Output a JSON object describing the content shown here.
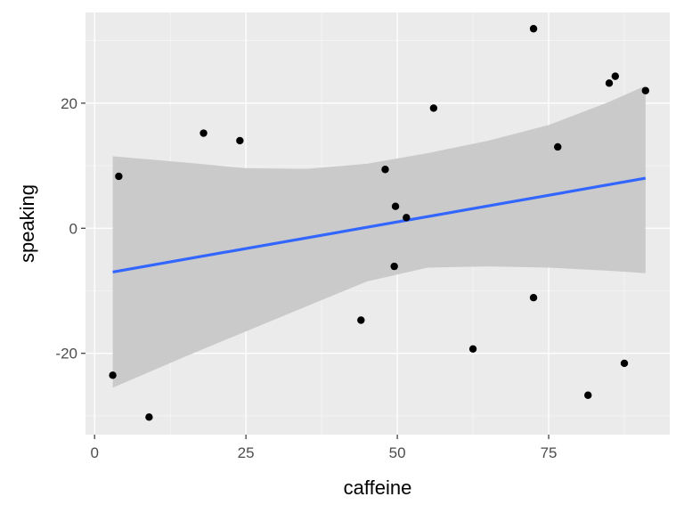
{
  "chart_data": {
    "type": "scatter",
    "title": "",
    "xlabel": "caffeine",
    "ylabel": "speaking",
    "xlim": [
      -1.5,
      95.0
    ],
    "ylim": [
      -33.0,
      34.5
    ],
    "x_ticks": [
      0,
      25,
      50,
      75
    ],
    "x_tick_labels": [
      "0",
      "25",
      "50",
      "75"
    ],
    "y_ticks": [
      -20,
      0,
      20
    ],
    "y_tick_labels": [
      "-20",
      "0",
      "20"
    ],
    "points": [
      {
        "x": 3.0,
        "y": -23.5
      },
      {
        "x": 4.0,
        "y": 8.3
      },
      {
        "x": 9.0,
        "y": -30.2
      },
      {
        "x": 18.0,
        "y": 15.2
      },
      {
        "x": 24.0,
        "y": 14.0
      },
      {
        "x": 44.0,
        "y": -14.7
      },
      {
        "x": 48.0,
        "y": 9.4
      },
      {
        "x": 49.5,
        "y": -6.1
      },
      {
        "x": 49.7,
        "y": 3.5
      },
      {
        "x": 51.5,
        "y": 1.7
      },
      {
        "x": 56.0,
        "y": 19.2
      },
      {
        "x": 62.5,
        "y": -19.3
      },
      {
        "x": 72.5,
        "y": -11.1
      },
      {
        "x": 72.5,
        "y": 31.9
      },
      {
        "x": 76.5,
        "y": 13.0
      },
      {
        "x": 81.5,
        "y": -26.7
      },
      {
        "x": 85.0,
        "y": 23.2
      },
      {
        "x": 86.0,
        "y": 24.3
      },
      {
        "x": 87.5,
        "y": -21.6
      },
      {
        "x": 91.0,
        "y": 22.0
      }
    ],
    "smooth": {
      "method": "lm",
      "x_range": [
        3.0,
        91.0
      ],
      "fit": [
        {
          "x": 3.0,
          "y": -7.0
        },
        {
          "x": 91.0,
          "y": 8.0
        }
      ],
      "ci_band": [
        {
          "x": 3.0,
          "lower": -25.5,
          "upper": 11.5
        },
        {
          "x": 15.0,
          "lower": -20.5,
          "upper": 10.5
        },
        {
          "x": 25.0,
          "lower": -16.5,
          "upper": 9.6
        },
        {
          "x": 35.0,
          "lower": -12.5,
          "upper": 9.5
        },
        {
          "x": 45.0,
          "lower": -8.5,
          "upper": 10.3
        },
        {
          "x": 55.0,
          "lower": -6.3,
          "upper": 12.0
        },
        {
          "x": 65.0,
          "lower": -6.1,
          "upper": 14.0
        },
        {
          "x": 75.0,
          "lower": -6.3,
          "upper": 16.5
        },
        {
          "x": 85.0,
          "lower": -6.8,
          "upper": 20.2
        },
        {
          "x": 91.0,
          "lower": -7.2,
          "upper": 22.8
        }
      ]
    },
    "colors": {
      "panel": "#ebebeb",
      "grid_major": "#ffffff",
      "grid_minor": "#f5f5f5",
      "ribbon": "#c8c8c8",
      "line": "#3366ff",
      "point": "#000000",
      "tick": "#333333"
    }
  }
}
